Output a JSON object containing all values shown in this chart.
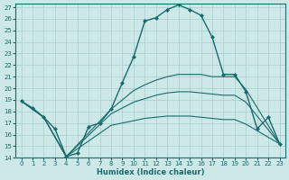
{
  "title": "",
  "xlabel": "Humidex (Indice chaleur)",
  "bg_color": "#cce8e8",
  "grid_color": "#aacccc",
  "line_color": "#1a6b6b",
  "xlim": [
    -0.5,
    23.5
  ],
  "ylim": [
    14,
    27.3
  ],
  "yticks": [
    14,
    15,
    16,
    17,
    18,
    19,
    20,
    21,
    22,
    23,
    24,
    25,
    26,
    27
  ],
  "xticks": [
    0,
    1,
    2,
    3,
    4,
    5,
    6,
    7,
    8,
    9,
    10,
    11,
    12,
    13,
    14,
    15,
    16,
    17,
    18,
    19,
    20,
    21,
    22,
    23
  ],
  "series": [
    {
      "x": [
        0,
        1,
        2,
        3,
        4,
        5,
        6,
        7,
        8,
        9,
        10,
        11,
        12,
        13,
        14,
        15,
        16,
        17,
        18,
        19,
        20,
        21,
        22,
        23
      ],
      "y": [
        18.9,
        18.3,
        17.5,
        16.5,
        14.1,
        14.4,
        16.7,
        17.0,
        18.2,
        20.5,
        22.7,
        25.8,
        26.1,
        26.8,
        27.2,
        26.8,
        26.3,
        24.4,
        21.2,
        21.2,
        19.7,
        16.5,
        17.5,
        15.2
      ],
      "marker": "D",
      "markersize": 2.0,
      "linewidth": 1.0,
      "has_marker": true
    },
    {
      "x": [
        0,
        2,
        4,
        8,
        9,
        10,
        11,
        12,
        13,
        14,
        15,
        16,
        17,
        18,
        19,
        20,
        23
      ],
      "y": [
        18.9,
        17.5,
        14.1,
        18.2,
        19.0,
        19.8,
        20.3,
        20.7,
        21.0,
        21.2,
        21.2,
        21.2,
        21.0,
        21.0,
        21.0,
        19.9,
        15.2
      ],
      "marker": null,
      "markersize": 0,
      "linewidth": 0.8,
      "has_marker": false
    },
    {
      "x": [
        0,
        2,
        4,
        8,
        9,
        10,
        11,
        12,
        13,
        14,
        15,
        16,
        17,
        18,
        19,
        20,
        23
      ],
      "y": [
        18.9,
        17.5,
        14.1,
        17.8,
        18.3,
        18.8,
        19.1,
        19.4,
        19.6,
        19.7,
        19.7,
        19.6,
        19.5,
        19.4,
        19.4,
        18.8,
        15.2
      ],
      "marker": null,
      "markersize": 0,
      "linewidth": 0.8,
      "has_marker": false
    },
    {
      "x": [
        0,
        2,
        4,
        8,
        9,
        10,
        11,
        12,
        13,
        14,
        15,
        16,
        17,
        18,
        19,
        20,
        23
      ],
      "y": [
        18.9,
        17.5,
        14.1,
        16.8,
        17.0,
        17.2,
        17.4,
        17.5,
        17.6,
        17.6,
        17.6,
        17.5,
        17.4,
        17.3,
        17.3,
        16.9,
        15.2
      ],
      "marker": null,
      "markersize": 0,
      "linewidth": 0.8,
      "has_marker": false
    }
  ]
}
